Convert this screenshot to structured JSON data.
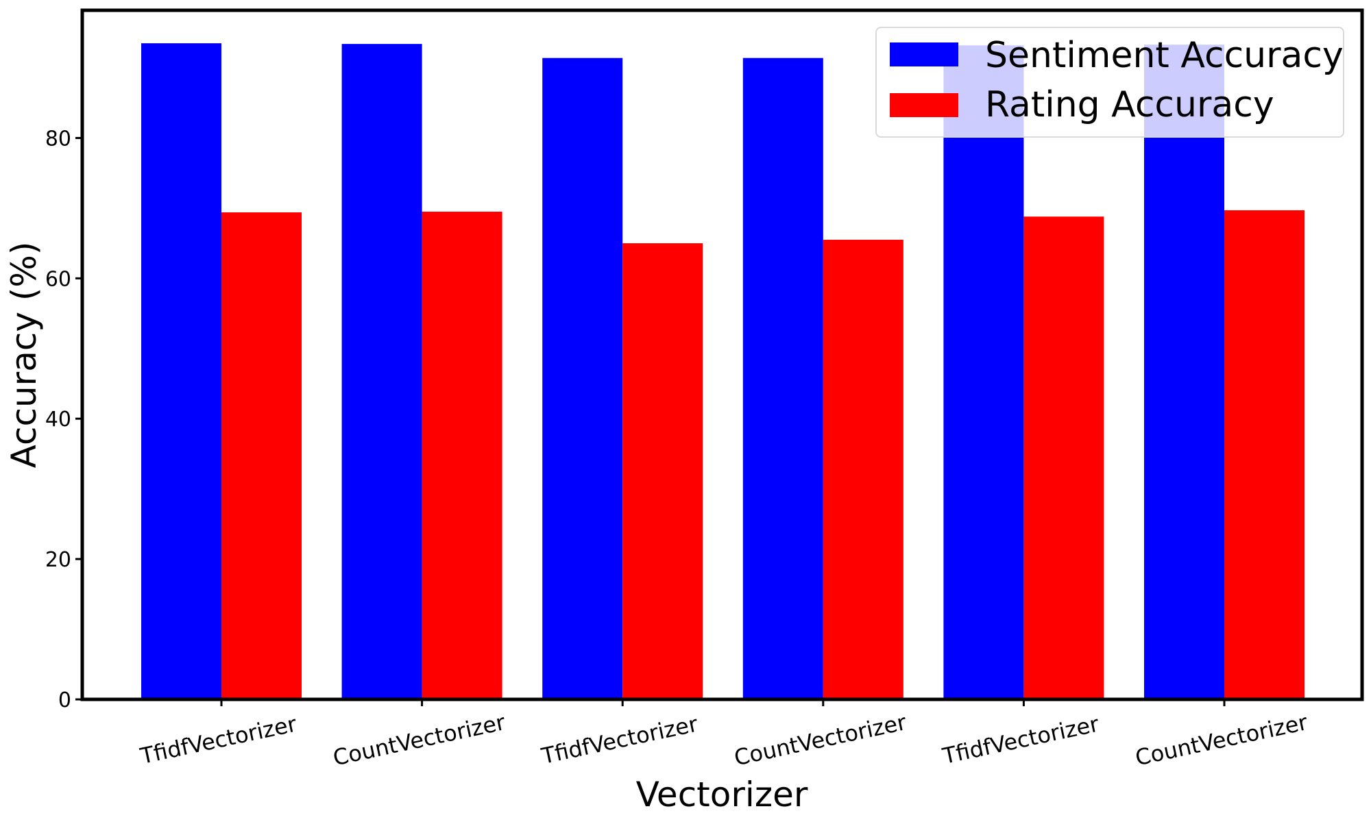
{
  "chart_data": {
    "type": "bar",
    "categories": [
      "TfidfVectorizer",
      "CountVectorizer",
      "TfidfVectorizer",
      "CountVectorizer",
      "TfidfVectorizer",
      "CountVectorizer"
    ],
    "series": [
      {
        "name": "Sentiment Accuracy",
        "color": "#0000ff",
        "values": [
          93.5,
          93.4,
          91.4,
          91.4,
          93.2,
          93.3
        ]
      },
      {
        "name": "Rating Accuracy",
        "color": "#ff0000",
        "values": [
          69.4,
          69.5,
          65.0,
          65.5,
          68.8,
          69.7
        ]
      }
    ],
    "xlabel": "Vectorizer",
    "ylabel": "Accuracy (%)",
    "ylim": [
      0,
      98.2
    ],
    "yticks": [
      0,
      20,
      40,
      60,
      80
    ],
    "grid": false,
    "legend_position": "top-right"
  }
}
